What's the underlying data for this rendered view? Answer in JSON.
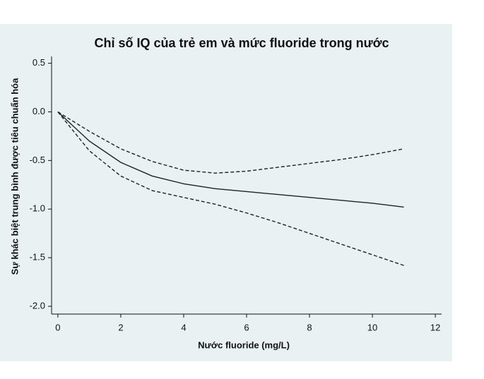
{
  "chart_data": {
    "type": "line",
    "title": "Chỉ số IQ của trẻ em và mức fluoride trong nước",
    "x_label": "Nước fluoride (mg/L)",
    "y_label": "Sự khác biệt trung bình được tiêu chuẩn hóa",
    "x": [
      0,
      1,
      2,
      3,
      4,
      5,
      6,
      7,
      8,
      9,
      10,
      11
    ],
    "series": [
      {
        "color": "#222222",
        "dash": "solid",
        "values": [
          0,
          -0.3,
          -0.52,
          -0.66,
          -0.74,
          -0.79,
          -0.82,
          -0.85,
          -0.88,
          -0.91,
          -0.94,
          -0.98
        ]
      },
      {
        "color": "#222222",
        "dash": "dashed",
        "values": [
          0,
          -0.2,
          -0.38,
          -0.51,
          -0.6,
          -0.63,
          -0.61,
          -0.57,
          -0.53,
          -0.49,
          -0.44,
          -0.38
        ]
      },
      {
        "color": "#222222",
        "dash": "dashed",
        "values": [
          0,
          -0.4,
          -0.66,
          -0.81,
          -0.88,
          -0.95,
          -1.04,
          -1.14,
          -1.25,
          -1.36,
          -1.47,
          -1.58
        ]
      }
    ],
    "xlim": [
      -0.2,
      12.2
    ],
    "xticks": [
      0,
      2,
      4,
      6,
      8,
      10,
      12
    ],
    "ylim": [
      -2.08,
      0.57
    ],
    "yticks": [
      0.5,
      {
        "value": 0,
        "label": "0.0"
      },
      -0.5,
      {
        "value": -1,
        "label": "-1.0"
      },
      -1.5,
      {
        "value": -2,
        "label": "-2.0"
      }
    ]
  }
}
